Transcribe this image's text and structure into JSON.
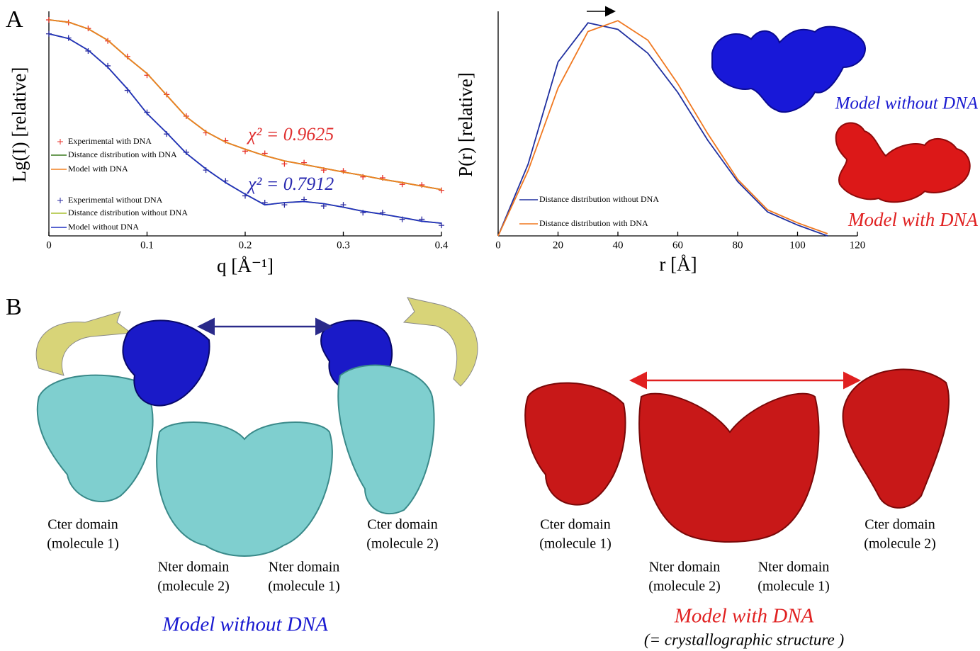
{
  "panels": {
    "a": "A",
    "b": "B"
  },
  "chart_data": [
    {
      "type": "line",
      "xlabel": "q [Å⁻¹]",
      "ylabel": "Lg(I) [relative]",
      "ylog": true,
      "xlim": [
        0,
        0.4
      ],
      "xticks": [
        0,
        0.1,
        0.2,
        0.3,
        0.4
      ],
      "ylim": [
        0.001,
        1.2
      ],
      "legend": "lower left",
      "x": [
        0,
        0.02,
        0.04,
        0.06,
        0.08,
        0.1,
        0.12,
        0.14,
        0.16,
        0.18,
        0.2,
        0.22,
        0.24,
        0.26,
        0.28,
        0.3,
        0.32,
        0.34,
        0.36,
        0.38,
        0.4
      ],
      "series": [
        {
          "name": "Experimental with DNA",
          "color": "#e8322a",
          "mode": "markers",
          "values": [
            1.0,
            0.92,
            0.76,
            0.51,
            0.31,
            0.17,
            0.092,
            0.046,
            0.027,
            0.021,
            0.015,
            0.014,
            0.01,
            0.0104,
            0.0082,
            0.008,
            0.0066,
            0.0064,
            0.0052,
            0.0051,
            0.0043
          ]
        },
        {
          "name": "Distance distribution with DNA",
          "color": "#3c7a1e",
          "mode": "line",
          "values": [
            1.0,
            0.93,
            0.75,
            0.52,
            0.3,
            0.18,
            0.09,
            0.045,
            0.028,
            0.02,
            0.016,
            0.013,
            0.011,
            0.0098,
            0.0087,
            0.0077,
            0.0069,
            0.0061,
            0.0055,
            0.0049,
            0.0044
          ]
        },
        {
          "name": "Model with DNA",
          "color": "#f08020",
          "mode": "line",
          "values": [
            1.0,
            0.93,
            0.75,
            0.52,
            0.3,
            0.18,
            0.09,
            0.045,
            0.028,
            0.02,
            0.016,
            0.013,
            0.011,
            0.0098,
            0.0087,
            0.0077,
            0.0069,
            0.0061,
            0.0055,
            0.0049,
            0.0044
          ]
        },
        {
          "name": "Experimental without DNA",
          "color": "#2a2aa0",
          "mode": "markers",
          "values": [
            0.64,
            0.56,
            0.37,
            0.23,
            0.105,
            0.052,
            0.026,
            0.0145,
            0.0082,
            0.0058,
            0.0036,
            0.0029,
            0.0027,
            0.0032,
            0.0026,
            0.0027,
            0.0021,
            0.0021,
            0.0017,
            0.0017,
            0.0014
          ]
        },
        {
          "name": "Distance distribution without DNA",
          "color": "#a8c030",
          "mode": "line",
          "values": [
            0.64,
            0.55,
            0.38,
            0.22,
            0.11,
            0.05,
            0.027,
            0.014,
            0.0085,
            0.0055,
            0.0038,
            0.0027,
            0.0029,
            0.003,
            0.0028,
            0.0025,
            0.0022,
            0.002,
            0.0018,
            0.0016,
            0.0015
          ]
        },
        {
          "name": "Model without DNA",
          "color": "#2030c0",
          "mode": "line",
          "values": [
            0.64,
            0.55,
            0.38,
            0.22,
            0.11,
            0.05,
            0.027,
            0.014,
            0.0085,
            0.0055,
            0.0038,
            0.0027,
            0.0029,
            0.003,
            0.0028,
            0.0025,
            0.0022,
            0.002,
            0.0018,
            0.0016,
            0.0015
          ]
        }
      ],
      "annotations": [
        {
          "text": "χ² = 0.9625",
          "color": "#e03030"
        },
        {
          "text": "χ² = 0.7912",
          "color": "#2a2ab0"
        }
      ]
    },
    {
      "type": "line",
      "xlabel": "r [Å]",
      "ylabel": "P(r) [relative]",
      "xlim": [
        0,
        120
      ],
      "xticks": [
        0,
        20,
        40,
        60,
        80,
        100,
        120
      ],
      "ylim": [
        0,
        1.02
      ],
      "legend": "lower left",
      "x": [
        0,
        10,
        20,
        30,
        40,
        50,
        60,
        70,
        80,
        90,
        100,
        110
      ],
      "series": [
        {
          "name": "Distance distribution without DNA",
          "color": "#2030a0",
          "mode": "line",
          "values": [
            0,
            0.33,
            0.8,
            0.98,
            0.95,
            0.84,
            0.66,
            0.44,
            0.25,
            0.11,
            0.05,
            0
          ]
        },
        {
          "name": "Distance distribution with DNA",
          "color": "#f07820",
          "mode": "line",
          "values": [
            0,
            0.3,
            0.68,
            0.94,
            0.99,
            0.9,
            0.7,
            0.47,
            0.26,
            0.12,
            0.06,
            0.01
          ]
        }
      ],
      "annotations": [
        {
          "text": "Model without DNA",
          "color": "#1a1ad0"
        },
        {
          "text": "Model with DNA",
          "color": "#e02020"
        }
      ]
    }
  ],
  "structures": [
    {
      "title": "Model without DNA",
      "labels": [
        [
          "Cter domain",
          "(molecule 1)"
        ],
        [
          "Nter domain",
          "(molecule 2)"
        ],
        [
          "Nter domain",
          "(molecule 1)"
        ],
        [
          "Cter domain",
          "(molecule 2)"
        ]
      ]
    },
    {
      "title": "Model with DNA",
      "subtitle": "(= crystallographic structure )",
      "labels": [
        [
          "Cter domain",
          "(molecule 1)"
        ],
        [
          "Nter domain",
          "(molecule 2)"
        ],
        [
          "Nter domain",
          "(molecule 1)"
        ],
        [
          "Cter domain",
          "(molecule 2)"
        ]
      ]
    }
  ]
}
